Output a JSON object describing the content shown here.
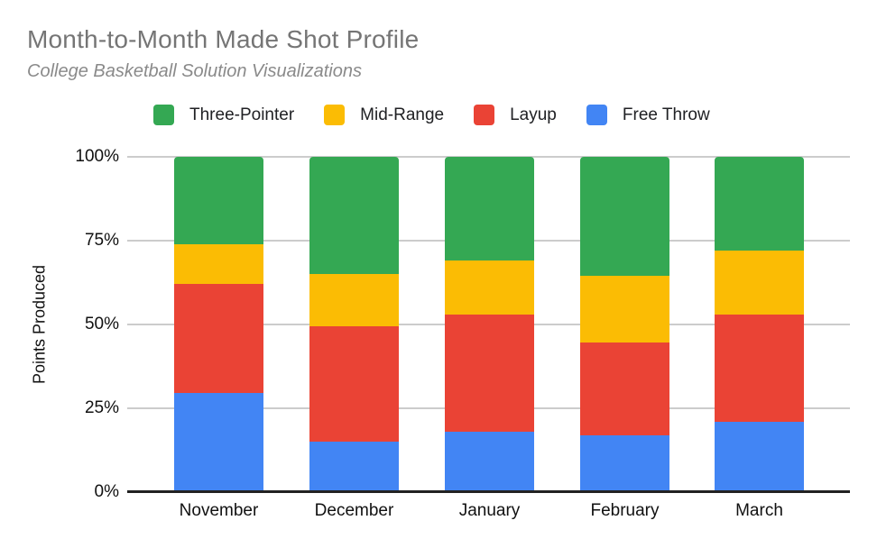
{
  "header": {
    "title": "Month-to-Month Made Shot Profile",
    "subtitle": "College Basketball Solution Visualizations"
  },
  "chart_data": {
    "type": "bar",
    "variant": "100-percent-stacked-column",
    "title": "Month-to-Month Made Shot Profile",
    "subtitle": "College Basketball Solution Visualizations",
    "xlabel": "",
    "ylabel": "Points Produced",
    "categories": [
      "November",
      "December",
      "January",
      "February",
      "March"
    ],
    "series": [
      {
        "name": "Free Throw",
        "color": "#4285F4",
        "values": [
          29.5,
          15,
          18,
          17,
          21
        ]
      },
      {
        "name": "Layup",
        "color": "#EA4335",
        "values": [
          32.5,
          34.5,
          35,
          27.5,
          32
        ]
      },
      {
        "name": "Mid-Range",
        "color": "#FBBC04",
        "values": [
          12,
          15.5,
          16,
          20,
          19
        ]
      },
      {
        "name": "Three-Pointer",
        "color": "#34A853",
        "values": [
          26,
          35,
          31,
          35.5,
          28
        ]
      }
    ],
    "stack_order_bottom_to_top": [
      "Free Throw",
      "Layup",
      "Mid-Range",
      "Three-Pointer"
    ],
    "values_unit": "percent of points produced",
    "ylim": [
      0,
      100
    ],
    "yticks": [
      {
        "value": 0,
        "label": "0%"
      },
      {
        "value": 25,
        "label": "25%"
      },
      {
        "value": 50,
        "label": "50%"
      },
      {
        "value": 75,
        "label": "75%"
      },
      {
        "value": 100,
        "label": "100%"
      }
    ],
    "legend": {
      "position": "top",
      "order": [
        "Three-Pointer",
        "Mid-Range",
        "Layup",
        "Free Throw"
      ]
    },
    "grid": true,
    "grid_color": "#cccccc",
    "baseline_color": "#222222",
    "background_color": "#ffffff"
  }
}
